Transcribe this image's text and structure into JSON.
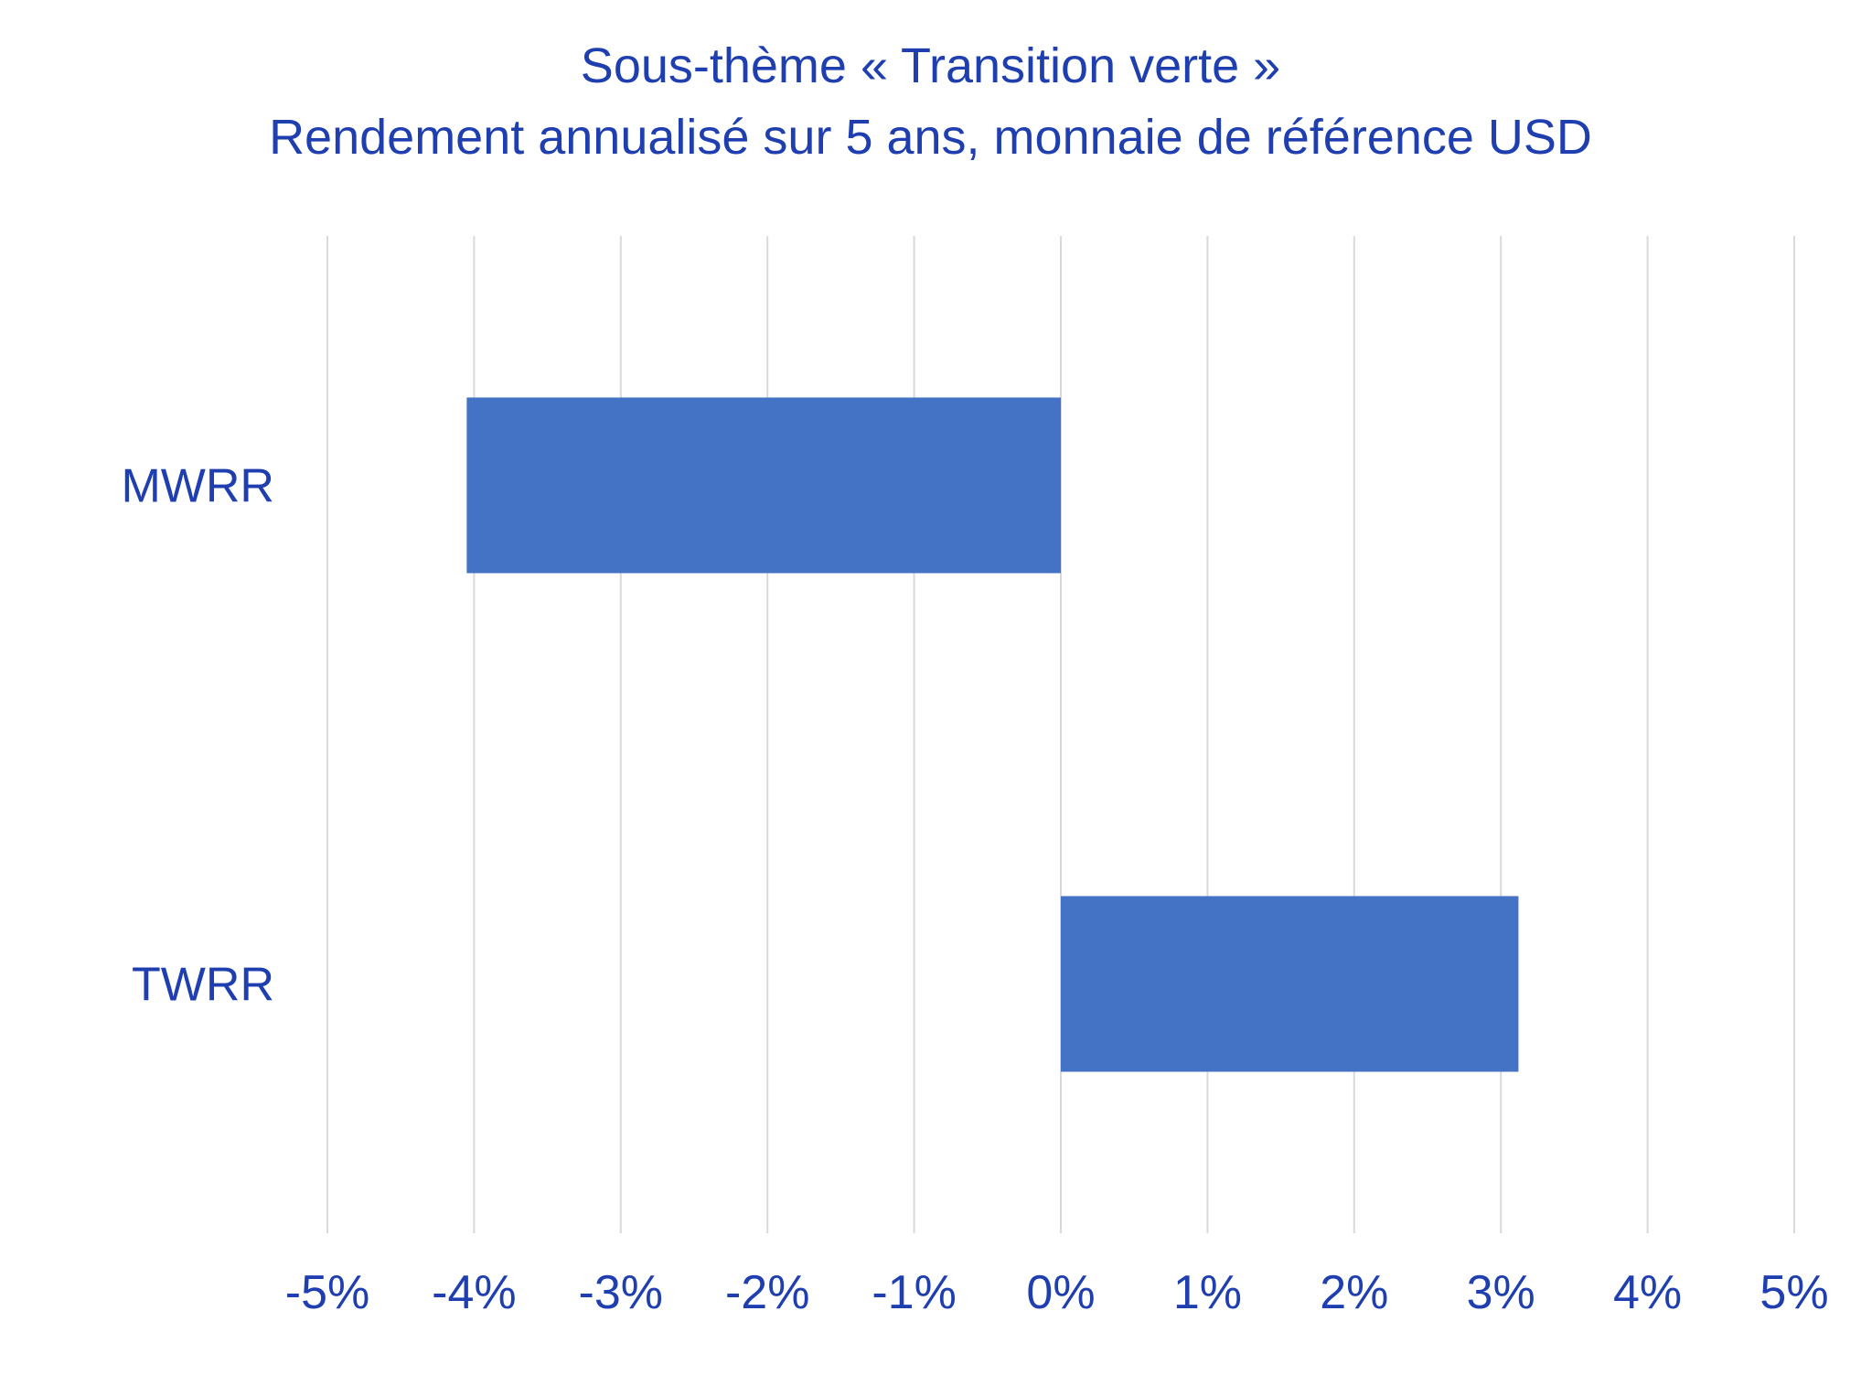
{
  "chart_data": {
    "type": "bar",
    "orientation": "horizontal",
    "title": "Sous-thème « Transition verte »",
    "subtitle": "Rendement annualisé sur 5 ans, monnaie de référence USD",
    "categories": [
      "MWRR",
      "TWRR"
    ],
    "values": [
      -4.05,
      3.12
    ],
    "unit": "%",
    "xlim": [
      -5,
      5
    ],
    "xticks": [
      -5,
      -4,
      -3,
      -2,
      -1,
      0,
      1,
      2,
      3,
      4,
      5
    ],
    "xtick_labels": [
      "-5%",
      "-4%",
      "-3%",
      "-2%",
      "-1%",
      "0%",
      "1%",
      "2%",
      "3%",
      "4%",
      "5%"
    ],
    "grid": "vertical",
    "legend": "none",
    "colors": {
      "bar": "#4472c4",
      "text": "#1f3fb0",
      "grid": "#d9d9d9"
    }
  }
}
